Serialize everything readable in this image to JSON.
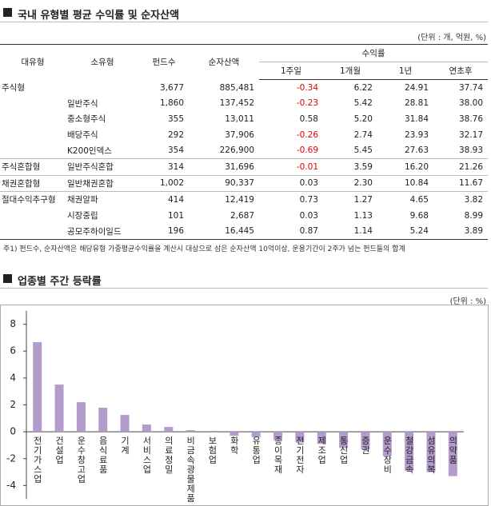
{
  "header": {
    "title": "국내 유형별 평균 수익률 및 순자산액",
    "unit": "(단위 : 개, 억원, %)"
  },
  "table": {
    "columns": [
      "대유형",
      "소유형",
      "펀드수",
      "순자산액"
    ],
    "group_column": "수익률",
    "sub_columns": [
      "1주일",
      "1개월",
      "1년",
      "연초후"
    ],
    "rows": [
      [
        "주식형",
        null,
        "3,677",
        "885,481",
        "-0.34",
        "6.22",
        "24.91",
        "37.74"
      ],
      [
        null,
        "일반주식",
        "1,860",
        "137,452",
        "-0.23",
        "5.42",
        "28.81",
        "38.00"
      ],
      [
        null,
        "중소형주식",
        "355",
        "13,011",
        "0.58",
        "5.20",
        "31.84",
        "38.76"
      ],
      [
        null,
        "배당주식",
        "292",
        "37,906",
        "-0.26",
        "2.74",
        "23.93",
        "32.17"
      ],
      [
        null,
        "K200인덱스",
        "354",
        "226,900",
        "-0.69",
        "5.45",
        "27.63",
        "38.93"
      ],
      [
        "주식혼합형",
        "일반주식혼합",
        "314",
        "31,696",
        "-0.01",
        "3.59",
        "16.20",
        "21.26"
      ],
      [
        "채권혼합형",
        "일반채권혼합",
        "1,002",
        "90,337",
        "0.03",
        "2.30",
        "10.84",
        "11.67"
      ],
      [
        "절대수익추구형",
        "채권알파",
        "414",
        "12,419",
        "0.73",
        "1.27",
        "4.65",
        "3.82"
      ],
      [
        null,
        "시장중립",
        "101",
        "2,687",
        "0.03",
        "1.13",
        "9.68",
        "8.99"
      ],
      [
        null,
        "공모주하이일드",
        "196",
        "16,445",
        "0.87",
        "1.14",
        "5.24",
        "3.89"
      ]
    ],
    "footnote": "주1) 펀드수, 순자산액은 해당유형 가중평균수익률을 계산시 대상으로 삼은 순자산액 10억이상, 운용기간이 2주가 넘는 펀드들의 합계"
  },
  "chart_data": {
    "type": "bar",
    "title": "업종별 주간 등락률",
    "unit": "(단위 : %)",
    "categories": [
      "전기가스업",
      "건설업",
      "운수창고업",
      "음식료품",
      "기계",
      "서비스업",
      "의료정밀",
      "비금속광물제품",
      "보험업",
      "화학",
      "유통업",
      "종이목재",
      "전기전자",
      "제조업",
      "통신업",
      "증권",
      "운수장비",
      "철강금속",
      "섬유의복",
      "의약품"
    ],
    "values": [
      6.67,
      3.51,
      2.2,
      1.79,
      1.25,
      0.54,
      0.36,
      0.12,
      0.06,
      -0.3,
      -0.4,
      -0.6,
      -0.8,
      -0.9,
      -1.2,
      -1.3,
      -1.8,
      -2.9,
      -3.0,
      -3.3
    ],
    "color": "#b39bcc",
    "ylim": [
      -5,
      9
    ],
    "yticks": [
      -4,
      -2,
      0,
      2,
      4,
      6,
      8
    ]
  }
}
